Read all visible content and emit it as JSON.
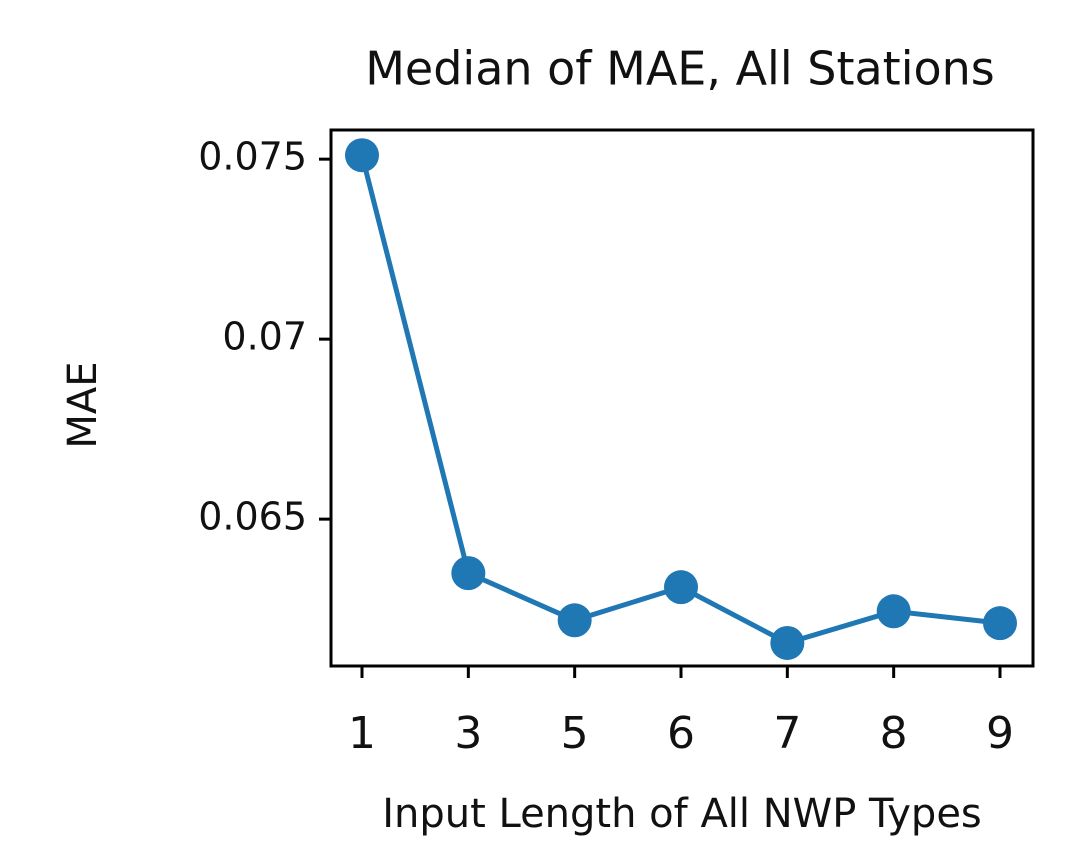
{
  "chart_data": {
    "type": "line",
    "title": "Median of MAE, All Stations",
    "x_label": "Input Length of All NWP Types",
    "y_label": "MAE",
    "categories": [
      "1",
      "3",
      "5",
      "6",
      "7",
      "8",
      "9"
    ],
    "series": [
      {
        "name": "MAE",
        "color": "#1f77b4",
        "values": [
          0.07511,
          0.0635,
          0.06219,
          0.06311,
          0.06156,
          0.06244,
          0.06211
        ]
      }
    ],
    "ylim": [
      0.06092,
      0.07581
    ],
    "yticks": [
      0.065,
      0.07,
      0.075
    ],
    "grid": false
  }
}
